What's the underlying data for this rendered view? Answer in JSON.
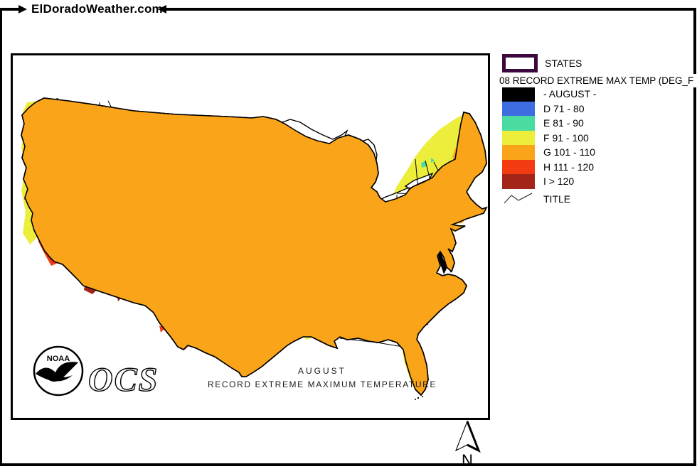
{
  "site": {
    "title": "ElDoradoWeather.com"
  },
  "legend": {
    "states_label": "STATES",
    "title": "08 RECORD EXTREME MAX TEMP (DEG_F",
    "classes": [
      {
        "label": "- AUGUST -",
        "color": "#000000"
      },
      {
        "label": "D 71 - 80",
        "color": "#3E6CE1"
      },
      {
        "label": "E 81 - 90",
        "color": "#49DBA0"
      },
      {
        "label": "F 91 - 100",
        "color": "#EDEE3B"
      },
      {
        "label": "G 101 - 110",
        "color": "#FAA41A"
      },
      {
        "label": "H 111 - 120",
        "color": "#F23B10"
      },
      {
        "label": "I > 120",
        "color": "#A32419"
      }
    ],
    "title_row_label": "TITLE",
    "states_outline_color": "#3C083E"
  },
  "map": {
    "caption_line1": "AUGUST",
    "caption_line2": "RECORD EXTREME MAXIMUM TEMPERATURE",
    "logo_text": "NOAA",
    "ocs_label": "OCS"
  },
  "compass": {
    "label": "N"
  },
  "colors": {
    "orange": "#FAA41A",
    "orange_dot": "#FFD35C",
    "yellow": "#EDEE3B",
    "green": "#49DBA0",
    "blue": "#3E6CE1",
    "red": "#F23B10",
    "darkred": "#A32419",
    "purple": "#3C083E",
    "line": "#000000"
  }
}
